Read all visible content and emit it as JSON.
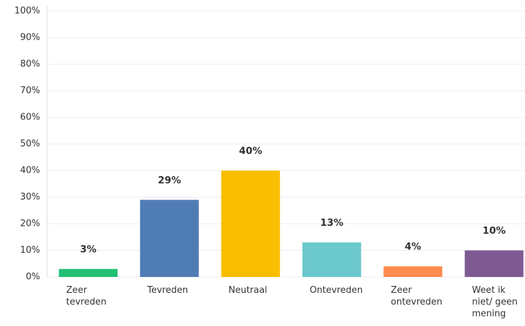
{
  "chart_data": {
    "type": "bar",
    "categories": [
      "Zeer tevreden",
      "Tevreden",
      "Neutraal",
      "Ontevreden",
      "Zeer ontevreden",
      "Weet ik niet/ geen mening"
    ],
    "values": [
      3,
      29,
      40,
      13,
      4,
      10
    ],
    "value_labels": [
      "3%",
      "29%",
      "40%",
      "13%",
      "4%",
      "10%"
    ],
    "colors": [
      "#21bf73",
      "#507cb6",
      "#f9be00",
      "#6bc8cd",
      "#ff8b4f",
      "#7d5b92"
    ],
    "ylim": [
      0,
      100
    ],
    "yticks": [
      {
        "value": 0,
        "label": "0%"
      },
      {
        "value": 10,
        "label": "10%"
      },
      {
        "value": 20,
        "label": "20%"
      },
      {
        "value": 30,
        "label": "30%"
      },
      {
        "value": 40,
        "label": "40%"
      },
      {
        "value": 50,
        "label": "50%"
      },
      {
        "value": 60,
        "label": "60%"
      },
      {
        "value": 70,
        "label": "70%"
      },
      {
        "value": 80,
        "label": "80%"
      },
      {
        "value": 90,
        "label": "90%"
      },
      {
        "value": 100,
        "label": "100%"
      }
    ],
    "grid": true
  }
}
